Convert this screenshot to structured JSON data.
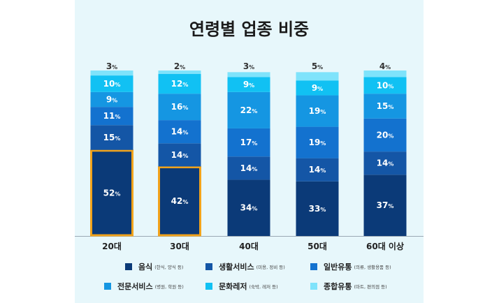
{
  "chart_data": {
    "type": "bar",
    "stacked": true,
    "title": "연령별 업종 비중",
    "categories": [
      "20대",
      "30대",
      "40대",
      "50대",
      "60대 이상"
    ],
    "unit": "%",
    "ylim": [
      0,
      100
    ],
    "highlighted": [
      {
        "category": "20대",
        "series": "음식"
      },
      {
        "category": "30대",
        "series": "음식"
      }
    ],
    "series": [
      {
        "name": "음식",
        "note": "(한식, 양식 등)",
        "color": "#0b3a78",
        "values": [
          52,
          42,
          34,
          33,
          37
        ]
      },
      {
        "name": "생활서비스",
        "note": "(미용, 정비 등)",
        "color": "#1456a6",
        "values": [
          15,
          14,
          14,
          14,
          14
        ]
      },
      {
        "name": "일반유통",
        "note": "(의류, 생활용품 등)",
        "color": "#1372cf",
        "values": [
          11,
          14,
          17,
          19,
          20
        ]
      },
      {
        "name": "전문서비스",
        "note": "(병원, 학원 등)",
        "color": "#1596e2",
        "values": [
          9,
          16,
          22,
          19,
          15
        ]
      },
      {
        "name": "문화레저",
        "note": "(숙박, 레저 등)",
        "color": "#11c1f3",
        "values": [
          10,
          12,
          9,
          9,
          10
        ]
      },
      {
        "name": "종합유통",
        "note": "(마트, 편의점 등)",
        "color": "#7fe3fb",
        "values": [
          3,
          2,
          3,
          5,
          4
        ]
      }
    ]
  },
  "highlight_color": "#f2a31b"
}
